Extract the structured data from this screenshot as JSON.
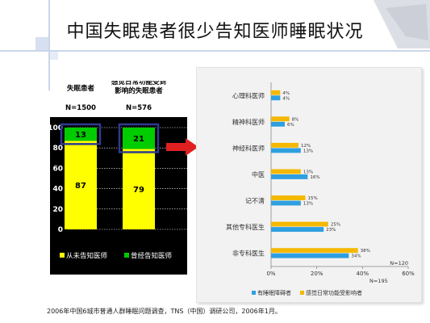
{
  "title": "中国失眠患者很少告知医师睡眠状况",
  "source_note": "2006年中国6城市普通人群睡眠问题调查，TNS（中国）调研公司，2006年1月。",
  "colors": {
    "yellow": "#ffff00",
    "green": "#00cc00",
    "blue": "#2e9fe0",
    "orange": "#f5b800",
    "highlight_box": "#2f3a8f",
    "arrow": "#e02020"
  },
  "chart_data": [
    {
      "type": "bar",
      "stacked": true,
      "groups": [
        {
          "header": "失眠患者",
          "n_label": "N=1500"
        },
        {
          "header": "感觉日常功能受到\n影响的失眠患者",
          "n_label": "N=576"
        }
      ],
      "series": [
        {
          "name": "从未告知医师",
          "color": "#ffff00",
          "values": [
            87,
            79
          ]
        },
        {
          "name": "曾经告知医师",
          "color": "#00cc00",
          "values": [
            13,
            21
          ]
        }
      ],
      "ylim": [
        0,
        100
      ],
      "yticks": [
        "0",
        "20",
        "40",
        "60",
        "80",
        "100"
      ],
      "grid": true,
      "legend_position": "bottom"
    },
    {
      "type": "bar",
      "orientation": "horizontal",
      "categories": [
        "心理科医师",
        "精神科医师",
        "神经科医师",
        "中医",
        "记不清",
        "其他专科医生",
        "非专科医生"
      ],
      "series": [
        {
          "name": "有睡眠障碍者",
          "color": "#2e9fe0",
          "values": [
            4,
            6,
            13,
            16,
            13,
            23,
            34
          ],
          "labels": [
            "4%",
            "6%",
            "13%",
            "16%",
            "13%",
            "23%",
            "34%"
          ]
        },
        {
          "name": "感觉日常功能受影响者",
          "color": "#f5b800",
          "values": [
            4,
            8,
            12,
            13,
            15,
            25,
            38
          ],
          "labels": [
            "4%",
            "8%",
            "12%",
            "13%",
            "15%",
            "25%",
            "38%"
          ]
        }
      ],
      "xlim": [
        0,
        60
      ],
      "xticks": [
        "0%",
        "20%",
        "40%",
        "60%"
      ],
      "n_labels": [
        "N=120",
        "N=195"
      ],
      "legend_position": "bottom"
    }
  ]
}
